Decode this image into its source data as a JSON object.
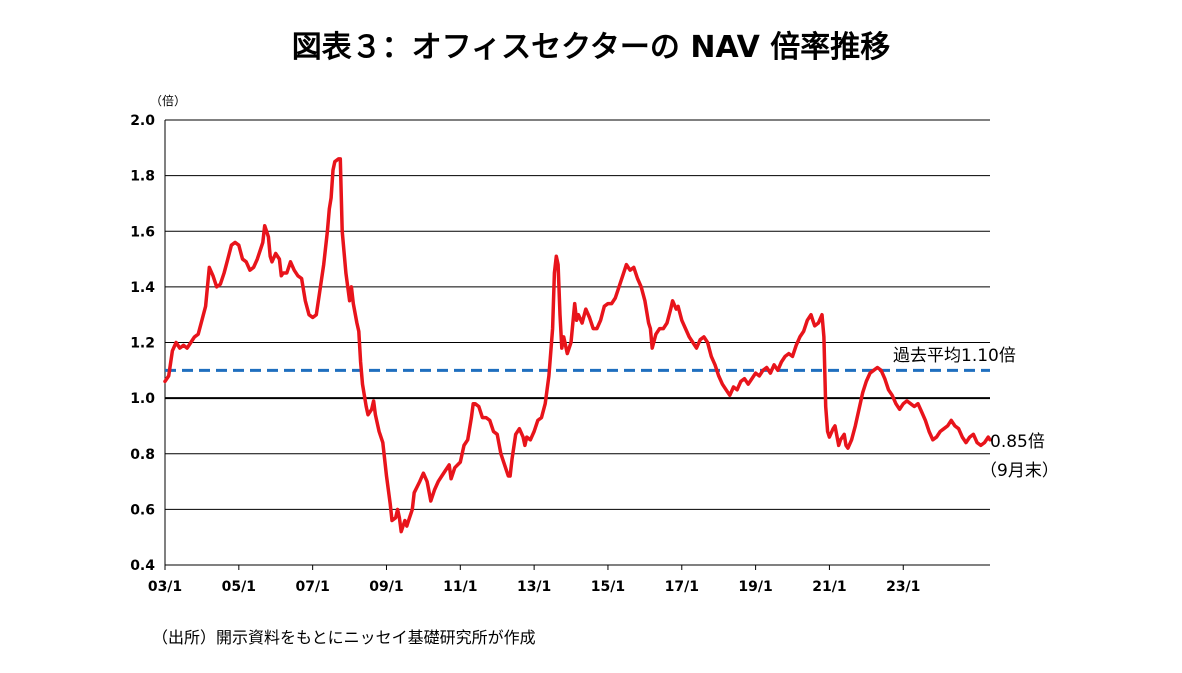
{
  "chart_data": {
    "type": "line",
    "title": "図表３：オフィスセクターの NAV 倍率推移",
    "unit_label": "（倍）",
    "ylim": [
      0.4,
      2.0
    ],
    "yticks": [
      "0.4",
      "0.6",
      "0.8",
      "1.0",
      "1.2",
      "1.4",
      "1.6",
      "1.8",
      "2.0"
    ],
    "xlim": [
      2003.0,
      2024.85
    ],
    "xticks": [
      {
        "label": "03/1",
        "year": 2003
      },
      {
        "label": "05/1",
        "year": 2005
      },
      {
        "label": "07/1",
        "year": 2007
      },
      {
        "label": "09/1",
        "year": 2009
      },
      {
        "label": "11/1",
        "year": 2011
      },
      {
        "label": "13/1",
        "year": 2013
      },
      {
        "label": "15/1",
        "year": 2015
      },
      {
        "label": "17/1",
        "year": 2017
      },
      {
        "label": "19/1",
        "year": 2019
      },
      {
        "label": "21/1",
        "year": 2021
      },
      {
        "label": "23/1",
        "year": 2023
      }
    ],
    "grid": "horizontal",
    "series": [
      {
        "color": "#e8141b",
        "points": [
          [
            2003.0,
            1.06
          ],
          [
            2003.1,
            1.08
          ],
          [
            2003.2,
            1.17
          ],
          [
            2003.3,
            1.2
          ],
          [
            2003.4,
            1.18
          ],
          [
            2003.5,
            1.19
          ],
          [
            2003.6,
            1.18
          ],
          [
            2003.7,
            1.2
          ],
          [
            2003.8,
            1.22
          ],
          [
            2003.9,
            1.23
          ],
          [
            2004.0,
            1.28
          ],
          [
            2004.1,
            1.33
          ],
          [
            2004.2,
            1.47
          ],
          [
            2004.3,
            1.44
          ],
          [
            2004.4,
            1.4
          ],
          [
            2004.5,
            1.41
          ],
          [
            2004.6,
            1.45
          ],
          [
            2004.7,
            1.5
          ],
          [
            2004.8,
            1.55
          ],
          [
            2004.9,
            1.56
          ],
          [
            2005.0,
            1.55
          ],
          [
            2005.1,
            1.5
          ],
          [
            2005.2,
            1.49
          ],
          [
            2005.3,
            1.46
          ],
          [
            2005.4,
            1.47
          ],
          [
            2005.5,
            1.5
          ],
          [
            2005.6,
            1.54
          ],
          [
            2005.65,
            1.56
          ],
          [
            2005.7,
            1.62
          ],
          [
            2005.8,
            1.58
          ],
          [
            2005.85,
            1.51
          ],
          [
            2005.9,
            1.49
          ],
          [
            2006.0,
            1.52
          ],
          [
            2006.1,
            1.5
          ],
          [
            2006.15,
            1.44
          ],
          [
            2006.2,
            1.45
          ],
          [
            2006.3,
            1.45
          ],
          [
            2006.4,
            1.49
          ],
          [
            2006.5,
            1.46
          ],
          [
            2006.6,
            1.44
          ],
          [
            2006.7,
            1.43
          ],
          [
            2006.8,
            1.35
          ],
          [
            2006.9,
            1.3
          ],
          [
            2007.0,
            1.29
          ],
          [
            2007.1,
            1.3
          ],
          [
            2007.2,
            1.39
          ],
          [
            2007.3,
            1.48
          ],
          [
            2007.4,
            1.6
          ],
          [
            2007.45,
            1.68
          ],
          [
            2007.5,
            1.72
          ],
          [
            2007.55,
            1.82
          ],
          [
            2007.6,
            1.85
          ],
          [
            2007.7,
            1.86
          ],
          [
            2007.75,
            1.86
          ],
          [
            2007.8,
            1.6
          ],
          [
            2007.9,
            1.45
          ],
          [
            2008.0,
            1.35
          ],
          [
            2008.05,
            1.4
          ],
          [
            2008.1,
            1.34
          ],
          [
            2008.2,
            1.27
          ],
          [
            2008.25,
            1.24
          ],
          [
            2008.3,
            1.13
          ],
          [
            2008.35,
            1.05
          ],
          [
            2008.45,
            0.97
          ],
          [
            2008.5,
            0.94
          ],
          [
            2008.6,
            0.96
          ],
          [
            2008.65,
            0.99
          ],
          [
            2008.7,
            0.94
          ],
          [
            2008.8,
            0.88
          ],
          [
            2008.9,
            0.84
          ],
          [
            2009.0,
            0.72
          ],
          [
            2009.1,
            0.62
          ],
          [
            2009.15,
            0.56
          ],
          [
            2009.25,
            0.57
          ],
          [
            2009.3,
            0.6
          ],
          [
            2009.35,
            0.57
          ],
          [
            2009.4,
            0.52
          ],
          [
            2009.5,
            0.56
          ],
          [
            2009.55,
            0.54
          ],
          [
            2009.6,
            0.56
          ],
          [
            2009.7,
            0.6
          ],
          [
            2009.75,
            0.66
          ],
          [
            2009.9,
            0.7
          ],
          [
            2010.0,
            0.73
          ],
          [
            2010.1,
            0.7
          ],
          [
            2010.2,
            0.63
          ],
          [
            2010.3,
            0.67
          ],
          [
            2010.4,
            0.7
          ],
          [
            2010.5,
            0.72
          ],
          [
            2010.6,
            0.74
          ],
          [
            2010.7,
            0.76
          ],
          [
            2010.75,
            0.71
          ],
          [
            2010.85,
            0.75
          ],
          [
            2011.0,
            0.77
          ],
          [
            2011.1,
            0.83
          ],
          [
            2011.2,
            0.85
          ],
          [
            2011.3,
            0.93
          ],
          [
            2011.35,
            0.98
          ],
          [
            2011.4,
            0.98
          ],
          [
            2011.5,
            0.97
          ],
          [
            2011.6,
            0.93
          ],
          [
            2011.7,
            0.93
          ],
          [
            2011.8,
            0.92
          ],
          [
            2011.9,
            0.88
          ],
          [
            2012.0,
            0.87
          ],
          [
            2012.1,
            0.8
          ],
          [
            2012.2,
            0.76
          ],
          [
            2012.3,
            0.72
          ],
          [
            2012.35,
            0.72
          ],
          [
            2012.4,
            0.78
          ],
          [
            2012.5,
            0.87
          ],
          [
            2012.6,
            0.89
          ],
          [
            2012.7,
            0.86
          ],
          [
            2012.75,
            0.83
          ],
          [
            2012.8,
            0.86
          ],
          [
            2012.9,
            0.85
          ],
          [
            2013.0,
            0.88
          ],
          [
            2013.1,
            0.92
          ],
          [
            2013.2,
            0.93
          ],
          [
            2013.3,
            0.98
          ],
          [
            2013.4,
            1.08
          ],
          [
            2013.5,
            1.25
          ],
          [
            2013.55,
            1.45
          ],
          [
            2013.6,
            1.51
          ],
          [
            2013.65,
            1.48
          ],
          [
            2013.7,
            1.3
          ],
          [
            2013.75,
            1.18
          ],
          [
            2013.8,
            1.22
          ],
          [
            2013.9,
            1.16
          ],
          [
            2014.0,
            1.2
          ],
          [
            2014.1,
            1.34
          ],
          [
            2014.15,
            1.28
          ],
          [
            2014.2,
            1.3
          ],
          [
            2014.3,
            1.27
          ],
          [
            2014.4,
            1.32
          ],
          [
            2014.5,
            1.29
          ],
          [
            2014.6,
            1.25
          ],
          [
            2014.7,
            1.25
          ],
          [
            2014.8,
            1.28
          ],
          [
            2014.9,
            1.33
          ],
          [
            2015.0,
            1.34
          ],
          [
            2015.1,
            1.34
          ],
          [
            2015.2,
            1.36
          ],
          [
            2015.3,
            1.4
          ],
          [
            2015.4,
            1.44
          ],
          [
            2015.5,
            1.48
          ],
          [
            2015.6,
            1.46
          ],
          [
            2015.7,
            1.47
          ],
          [
            2015.8,
            1.43
          ],
          [
            2015.9,
            1.4
          ],
          [
            2016.0,
            1.35
          ],
          [
            2016.1,
            1.27
          ],
          [
            2016.15,
            1.25
          ],
          [
            2016.2,
            1.18
          ],
          [
            2016.3,
            1.23
          ],
          [
            2016.4,
            1.25
          ],
          [
            2016.5,
            1.25
          ],
          [
            2016.6,
            1.27
          ],
          [
            2016.7,
            1.32
          ],
          [
            2016.75,
            1.35
          ],
          [
            2016.85,
            1.32
          ],
          [
            2016.9,
            1.33
          ],
          [
            2017.0,
            1.28
          ],
          [
            2017.1,
            1.25
          ],
          [
            2017.2,
            1.22
          ],
          [
            2017.3,
            1.2
          ],
          [
            2017.4,
            1.18
          ],
          [
            2017.5,
            1.21
          ],
          [
            2017.6,
            1.22
          ],
          [
            2017.7,
            1.2
          ],
          [
            2017.8,
            1.15
          ],
          [
            2017.9,
            1.12
          ],
          [
            2018.0,
            1.08
          ],
          [
            2018.1,
            1.05
          ],
          [
            2018.2,
            1.03
          ],
          [
            2018.3,
            1.01
          ],
          [
            2018.4,
            1.04
          ],
          [
            2018.5,
            1.03
          ],
          [
            2018.6,
            1.06
          ],
          [
            2018.7,
            1.07
          ],
          [
            2018.8,
            1.05
          ],
          [
            2018.9,
            1.07
          ],
          [
            2019.0,
            1.09
          ],
          [
            2019.1,
            1.08
          ],
          [
            2019.2,
            1.1
          ],
          [
            2019.3,
            1.11
          ],
          [
            2019.4,
            1.09
          ],
          [
            2019.5,
            1.12
          ],
          [
            2019.6,
            1.1
          ],
          [
            2019.7,
            1.13
          ],
          [
            2019.8,
            1.15
          ],
          [
            2019.9,
            1.16
          ],
          [
            2020.0,
            1.15
          ],
          [
            2020.1,
            1.19
          ],
          [
            2020.2,
            1.22
          ],
          [
            2020.3,
            1.24
          ],
          [
            2020.4,
            1.28
          ],
          [
            2020.5,
            1.3
          ],
          [
            2020.55,
            1.28
          ],
          [
            2020.6,
            1.26
          ],
          [
            2020.7,
            1.27
          ],
          [
            2020.8,
            1.3
          ],
          [
            2020.85,
            1.22
          ],
          [
            2020.9,
            0.97
          ],
          [
            2020.95,
            0.88
          ],
          [
            2021.0,
            0.86
          ],
          [
            2021.1,
            0.89
          ],
          [
            2021.15,
            0.9
          ],
          [
            2021.25,
            0.83
          ],
          [
            2021.3,
            0.85
          ],
          [
            2021.4,
            0.87
          ],
          [
            2021.45,
            0.83
          ],
          [
            2021.5,
            0.82
          ],
          [
            2021.6,
            0.85
          ],
          [
            2021.7,
            0.9
          ],
          [
            2021.8,
            0.96
          ],
          [
            2021.9,
            1.02
          ],
          [
            2022.0,
            1.06
          ],
          [
            2022.1,
            1.09
          ],
          [
            2022.2,
            1.1
          ],
          [
            2022.3,
            1.11
          ],
          [
            2022.4,
            1.1
          ],
          [
            2022.5,
            1.07
          ],
          [
            2022.6,
            1.03
          ],
          [
            2022.7,
            1.01
          ],
          [
            2022.8,
            0.98
          ],
          [
            2022.9,
            0.96
          ],
          [
            2023.0,
            0.98
          ],
          [
            2023.1,
            0.99
          ],
          [
            2023.2,
            0.98
          ],
          [
            2023.3,
            0.97
          ],
          [
            2023.4,
            0.98
          ],
          [
            2023.5,
            0.95
          ],
          [
            2023.6,
            0.92
          ],
          [
            2023.7,
            0.88
          ],
          [
            2023.8,
            0.85
          ],
          [
            2023.9,
            0.86
          ],
          [
            2024.0,
            0.88
          ],
          [
            2024.1,
            0.89
          ],
          [
            2024.2,
            0.9
          ],
          [
            2024.3,
            0.92
          ],
          [
            2024.4,
            0.9
          ],
          [
            2024.5,
            0.89
          ],
          [
            2024.6,
            0.86
          ],
          [
            2024.7,
            0.84
          ],
          [
            2024.8,
            0.86
          ],
          [
            2024.9,
            0.87
          ],
          [
            2025.0,
            0.84
          ],
          [
            2025.1,
            0.83
          ],
          [
            2025.2,
            0.84
          ],
          [
            2025.3,
            0.86
          ],
          [
            2025.35,
            0.85
          ]
        ]
      }
    ],
    "reference_lines": [
      {
        "value": 1.0,
        "color": "#000000",
        "style": "solid"
      },
      {
        "value": 1.1,
        "color": "#1f6fbf",
        "style": "dashed"
      }
    ],
    "annotations": {
      "avg_label": "過去平均1.10倍",
      "latest_value": "0.85倍",
      "latest_note": "（9月末）"
    }
  },
  "source_note": "（出所）開示資料をもとにニッセイ基礎研究所が作成"
}
